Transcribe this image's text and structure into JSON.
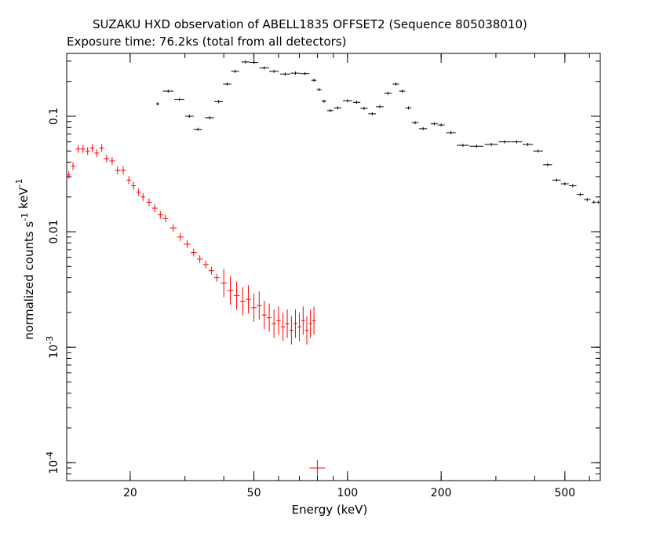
{
  "chart_data": {
    "type": "scatter",
    "title": "SUZAKU HXD observation of ABELL1835 OFFSET2 (Sequence 805038010)",
    "subtitle": "Exposure time: 76.2ks (total from all detectors)",
    "xlabel": "Energy (keV)",
    "ylabel": "normalized counts s^-1 keV^-1",
    "xscale": "log",
    "yscale": "log",
    "xlim": [
      12.5,
      650
    ],
    "ylim": [
      7e-05,
      0.35
    ],
    "x_ticks": [
      {
        "value": 20,
        "label": "20"
      },
      {
        "value": 50,
        "label": "50"
      },
      {
        "value": 100,
        "label": "100"
      },
      {
        "value": 200,
        "label": "200"
      },
      {
        "value": 500,
        "label": "500"
      }
    ],
    "y_ticks": [
      {
        "value": 0.1,
        "label": "0.1"
      },
      {
        "value": 0.01,
        "label": "0.01"
      },
      {
        "value": 0.001,
        "label": "10",
        "exp": "-3"
      },
      {
        "value": 0.0001,
        "label": "10",
        "exp": "-4"
      }
    ],
    "grid": false,
    "series": [
      {
        "color": "#000000",
        "style": "crosses",
        "points": [
          [
            24.5,
            0.128
          ],
          [
            26.5,
            0.165
          ],
          [
            28.8,
            0.14
          ],
          [
            31.0,
            0.1
          ],
          [
            33.0,
            0.077
          ],
          [
            36.0,
            0.097
          ],
          [
            38.5,
            0.134
          ],
          [
            41.0,
            0.19
          ],
          [
            43.5,
            0.245
          ],
          [
            47.0,
            0.295
          ],
          [
            50.0,
            0.292
          ],
          [
            54.0,
            0.262
          ],
          [
            58.0,
            0.245
          ],
          [
            63.0,
            0.232
          ],
          [
            68.0,
            0.236
          ],
          [
            73.0,
            0.234
          ],
          [
            78.0,
            0.205
          ],
          [
            81.0,
            0.17
          ],
          [
            84.0,
            0.135
          ],
          [
            88.0,
            0.112
          ],
          [
            93.0,
            0.118
          ],
          [
            100.0,
            0.136
          ],
          [
            107.0,
            0.132
          ],
          [
            113.0,
            0.117
          ],
          [
            120.0,
            0.105
          ],
          [
            127.0,
            0.121
          ],
          [
            135.0,
            0.158
          ],
          [
            143.0,
            0.19
          ],
          [
            150.0,
            0.165
          ],
          [
            157.0,
            0.118
          ],
          [
            165.0,
            0.088
          ],
          [
            175.0,
            0.078
          ],
          [
            190.0,
            0.086
          ],
          [
            200.0,
            0.084
          ],
          [
            215.0,
            0.072
          ],
          [
            235.0,
            0.056
          ],
          [
            260.0,
            0.055
          ],
          [
            290.0,
            0.057
          ],
          [
            320.0,
            0.06
          ],
          [
            350.0,
            0.06
          ],
          [
            380.0,
            0.057
          ],
          [
            410.0,
            0.05
          ],
          [
            440.0,
            0.038
          ],
          [
            470.0,
            0.028
          ],
          [
            500.0,
            0.026
          ],
          [
            530.0,
            0.025
          ],
          [
            560.0,
            0.021
          ],
          [
            590.0,
            0.019
          ],
          [
            620.0,
            0.018
          ],
          [
            640.0,
            0.018
          ]
        ]
      },
      {
        "color": "#ff0000",
        "style": "crosses",
        "points": [
          [
            12.7,
            0.031
          ],
          [
            13.1,
            0.037
          ],
          [
            13.6,
            0.052
          ],
          [
            14.1,
            0.052
          ],
          [
            14.6,
            0.05
          ],
          [
            15.1,
            0.053
          ],
          [
            15.6,
            0.048
          ],
          [
            16.2,
            0.053
          ],
          [
            16.8,
            0.043
          ],
          [
            17.5,
            0.041
          ],
          [
            18.2,
            0.034
          ],
          [
            19.0,
            0.034
          ],
          [
            19.8,
            0.028
          ],
          [
            20.5,
            0.025
          ],
          [
            21.3,
            0.022
          ],
          [
            22.0,
            0.02
          ],
          [
            23.0,
            0.018
          ],
          [
            24.0,
            0.016
          ],
          [
            25.0,
            0.014
          ],
          [
            26.0,
            0.013
          ],
          [
            27.5,
            0.0108
          ],
          [
            29.0,
            0.009
          ],
          [
            30.5,
            0.0078
          ],
          [
            32.0,
            0.0066
          ],
          [
            33.5,
            0.0058
          ],
          [
            35.0,
            0.0052
          ],
          [
            36.5,
            0.0046
          ],
          [
            38.0,
            0.004
          ],
          [
            40.0,
            0.0036
          ],
          [
            42.0,
            0.0031
          ],
          [
            44.0,
            0.0028
          ],
          [
            46.0,
            0.0025
          ],
          [
            48.0,
            0.0026
          ],
          [
            50.0,
            0.0022
          ],
          [
            52.0,
            0.0023
          ],
          [
            54.0,
            0.0019
          ],
          [
            56.0,
            0.0018
          ],
          [
            58.0,
            0.0016
          ],
          [
            60.0,
            0.0017
          ],
          [
            62.0,
            0.0015
          ],
          [
            64.0,
            0.0016
          ],
          [
            66.0,
            0.0014
          ],
          [
            68.0,
            0.0016
          ],
          [
            70.0,
            0.0015
          ],
          [
            72.0,
            0.0017
          ],
          [
            74.0,
            0.0014
          ],
          [
            76.0,
            0.0016
          ],
          [
            78.0,
            0.0017
          ],
          [
            80.0,
            9e-05
          ]
        ]
      }
    ]
  }
}
